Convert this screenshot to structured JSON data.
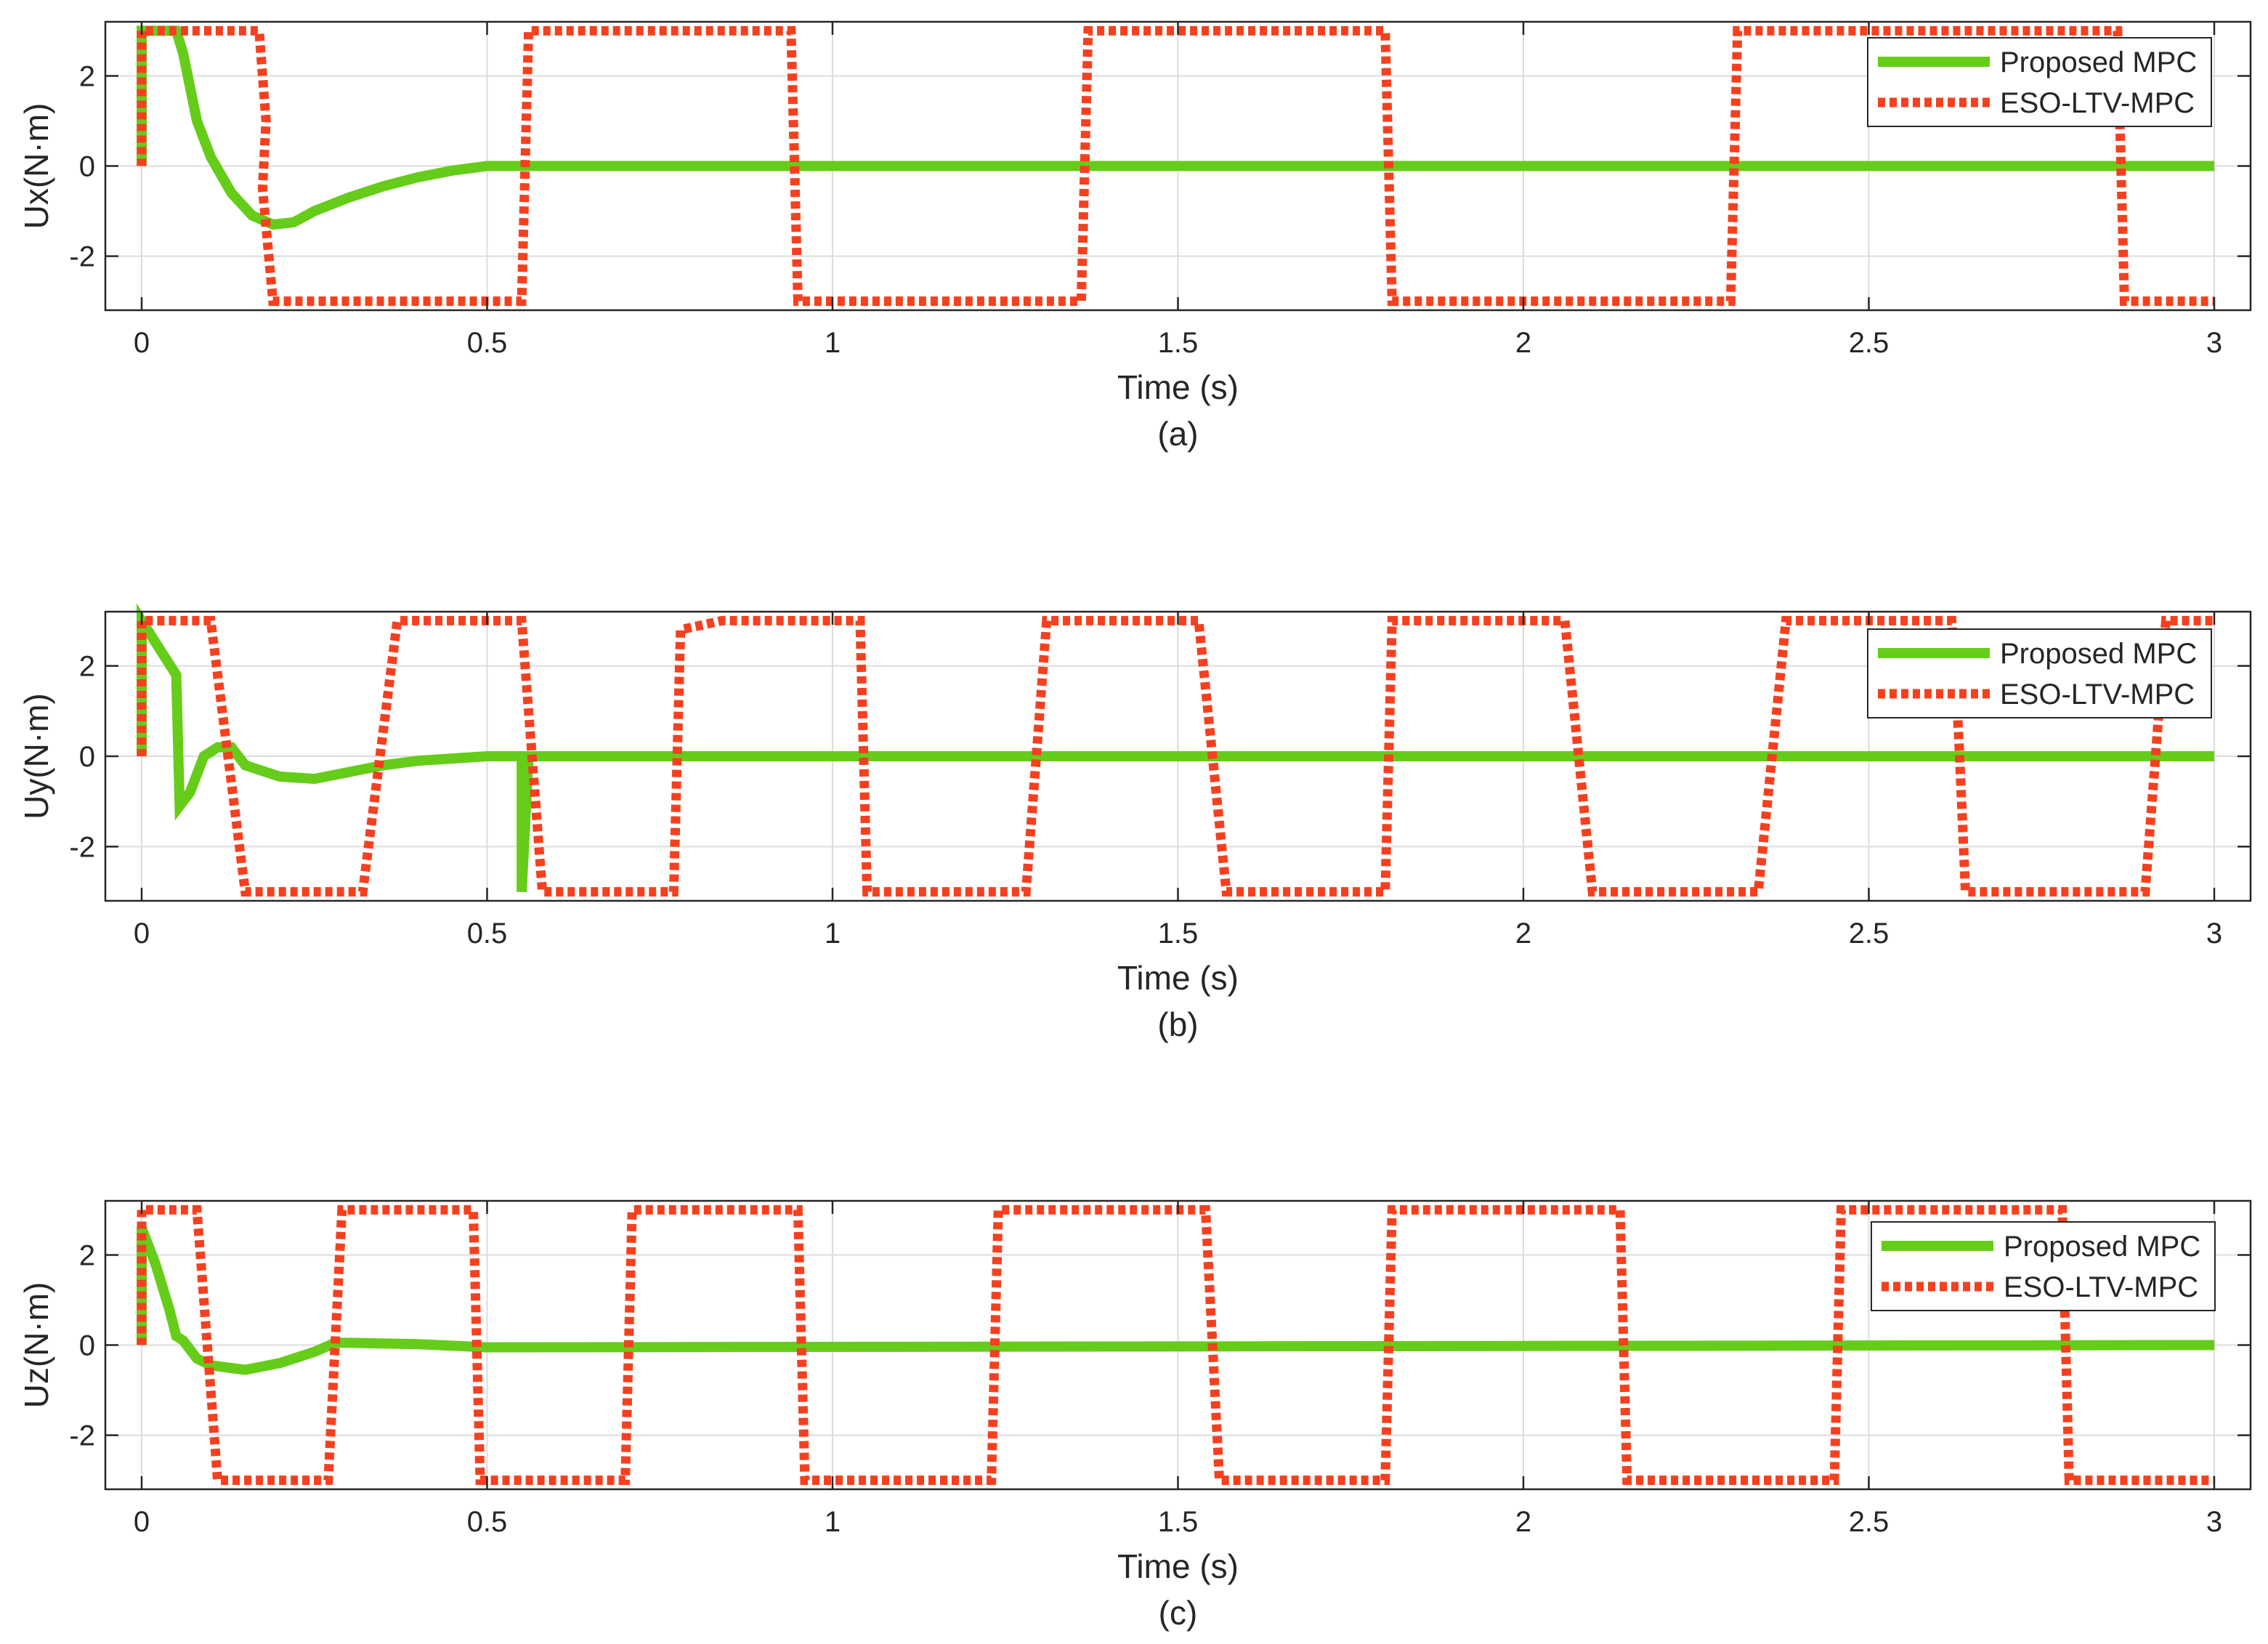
{
  "colors": {
    "proposed": "#66cc1a",
    "eso": "#f5401f",
    "grid": "#dcdcdc",
    "axis": "#262626"
  },
  "chart_data": [
    {
      "type": "line",
      "caption": "(a)",
      "xlabel": "Time (s)",
      "ylabel": "Ux(N·m)",
      "xlim": [
        0,
        3
      ],
      "ylim": [
        -3.2,
        3.2
      ],
      "xticks": [
        0,
        0.5,
        1,
        1.5,
        2,
        2.5,
        3
      ],
      "xtick_labels": [
        "0",
        "0.5",
        "1",
        "1.5",
        "2",
        "2.5",
        "3"
      ],
      "yticks": [
        2,
        0,
        -2
      ],
      "ytick_labels": [
        "2",
        "0",
        "-2"
      ],
      "grid": true,
      "legend_position": "top-right",
      "series": [
        {
          "name": "Proposed MPC",
          "style": "solid",
          "x": [
            0,
            0,
            0.05,
            0.06,
            0.08,
            0.1,
            0.13,
            0.16,
            0.19,
            0.22,
            0.25,
            0.3,
            0.35,
            0.4,
            0.45,
            0.5,
            0.6,
            3
          ],
          "y": [
            0,
            3,
            3,
            2.5,
            1.0,
            0.2,
            -0.6,
            -1.1,
            -1.3,
            -1.25,
            -1.0,
            -0.7,
            -0.45,
            -0.25,
            -0.1,
            0,
            0,
            0
          ]
        },
        {
          "name": "ESO-LTV-MPC",
          "style": "dotted",
          "x": [
            0,
            0,
            0.17,
            0.18,
            0.175,
            0.19,
            0.2,
            0.55,
            0.56,
            0.94,
            0.95,
            1.36,
            1.37,
            1.8,
            1.81,
            2.3,
            2.31,
            2.86,
            2.87,
            3
          ],
          "y": [
            0,
            3,
            3,
            1,
            -0.5,
            -3,
            -3,
            -3,
            3,
            3,
            -3,
            -3,
            3,
            3,
            -3,
            -3,
            3,
            3,
            -3,
            -3
          ]
        }
      ]
    },
    {
      "type": "line",
      "caption": "(b)",
      "xlabel": "Time (s)",
      "ylabel": "Uy(N·m)",
      "xlim": [
        0,
        3
      ],
      "ylim": [
        -3.2,
        3.2
      ],
      "xticks": [
        0,
        0.5,
        1,
        1.5,
        2,
        2.5,
        3
      ],
      "xtick_labels": [
        "0",
        "0.5",
        "1",
        "1.5",
        "2",
        "2.5",
        "3"
      ],
      "yticks": [
        2,
        0,
        -2
      ],
      "ytick_labels": [
        "2",
        "0",
        "-2"
      ],
      "grid": true,
      "legend_position": "top-right",
      "series": [
        {
          "name": "Proposed MPC",
          "style": "solid",
          "x": [
            0,
            0,
            0.05,
            0.055,
            0.07,
            0.09,
            0.11,
            0.13,
            0.15,
            0.2,
            0.25,
            0.3,
            0.35,
            0.4,
            0.45,
            0.5,
            0.55,
            0.55,
            0.56,
            3
          ],
          "y": [
            0,
            3,
            1.8,
            -1.1,
            -0.8,
            0,
            0.2,
            0.2,
            -0.2,
            -0.45,
            -0.5,
            -0.35,
            -0.2,
            -0.1,
            -0.05,
            0,
            0,
            -3,
            0,
            0
          ]
        },
        {
          "name": "ESO-LTV-MPC",
          "style": "dotted",
          "x": [
            0,
            0,
            0.1,
            0.15,
            0.32,
            0.37,
            0.55,
            0.58,
            0.77,
            0.78,
            0.84,
            1.04,
            1.05,
            1.28,
            1.31,
            1.53,
            1.57,
            1.8,
            1.81,
            2.06,
            2.1,
            2.34,
            2.38,
            2.62,
            2.63,
            2.64,
            2.68,
            2.9,
            2.93,
            2.95,
            3
          ],
          "y": [
            0,
            3,
            3,
            -3,
            -3,
            3,
            3,
            -3,
            -3,
            2.8,
            3,
            3,
            -3,
            -3,
            3,
            3,
            -3,
            -3,
            3,
            3,
            -3,
            -3,
            3,
            3,
            0.5,
            -3,
            -3,
            -3,
            3,
            3,
            3
          ]
        }
      ]
    },
    {
      "type": "line",
      "caption": "(c)",
      "xlabel": "Time (s)",
      "ylabel": "Uz(N·m)",
      "xlim": [
        0,
        3
      ],
      "ylim": [
        -3.2,
        3.2
      ],
      "xticks": [
        0,
        0.5,
        1,
        1.5,
        2,
        2.5,
        3
      ],
      "xtick_labels": [
        "0",
        "0.5",
        "1",
        "1.5",
        "2",
        "2.5",
        "3"
      ],
      "yticks": [
        2,
        0,
        -2
      ],
      "ytick_labels": [
        "2",
        "0",
        "-2"
      ],
      "grid": true,
      "legend_position": "top-right",
      "series": [
        {
          "name": "Proposed MPC",
          "style": "solid",
          "x": [
            0,
            0,
            0.02,
            0.04,
            0.05,
            0.06,
            0.08,
            0.1,
            0.15,
            0.2,
            0.25,
            0.28,
            0.3,
            0.4,
            0.5,
            3
          ],
          "y": [
            0,
            2.6,
            1.8,
            0.8,
            0.2,
            0.1,
            -0.3,
            -0.45,
            -0.55,
            -0.4,
            -0.15,
            0.05,
            0.05,
            0.02,
            -0.05,
            0
          ]
        },
        {
          "name": "ESO-LTV-MPC",
          "style": "dotted",
          "x": [
            0,
            0,
            0.08,
            0.11,
            0.27,
            0.29,
            0.48,
            0.49,
            0.7,
            0.71,
            0.95,
            0.96,
            1.23,
            1.24,
            1.54,
            1.56,
            1.8,
            1.81,
            1.84,
            2.14,
            2.15,
            2.45,
            2.46,
            2.78,
            2.79,
            3
          ],
          "y": [
            0,
            3,
            3,
            -3,
            -3,
            3,
            3,
            -3,
            -3,
            3,
            3,
            -3,
            -3,
            3,
            3,
            -3,
            -3,
            3,
            3,
            3,
            -3,
            -3,
            3,
            3,
            -3,
            -3
          ]
        }
      ]
    }
  ]
}
